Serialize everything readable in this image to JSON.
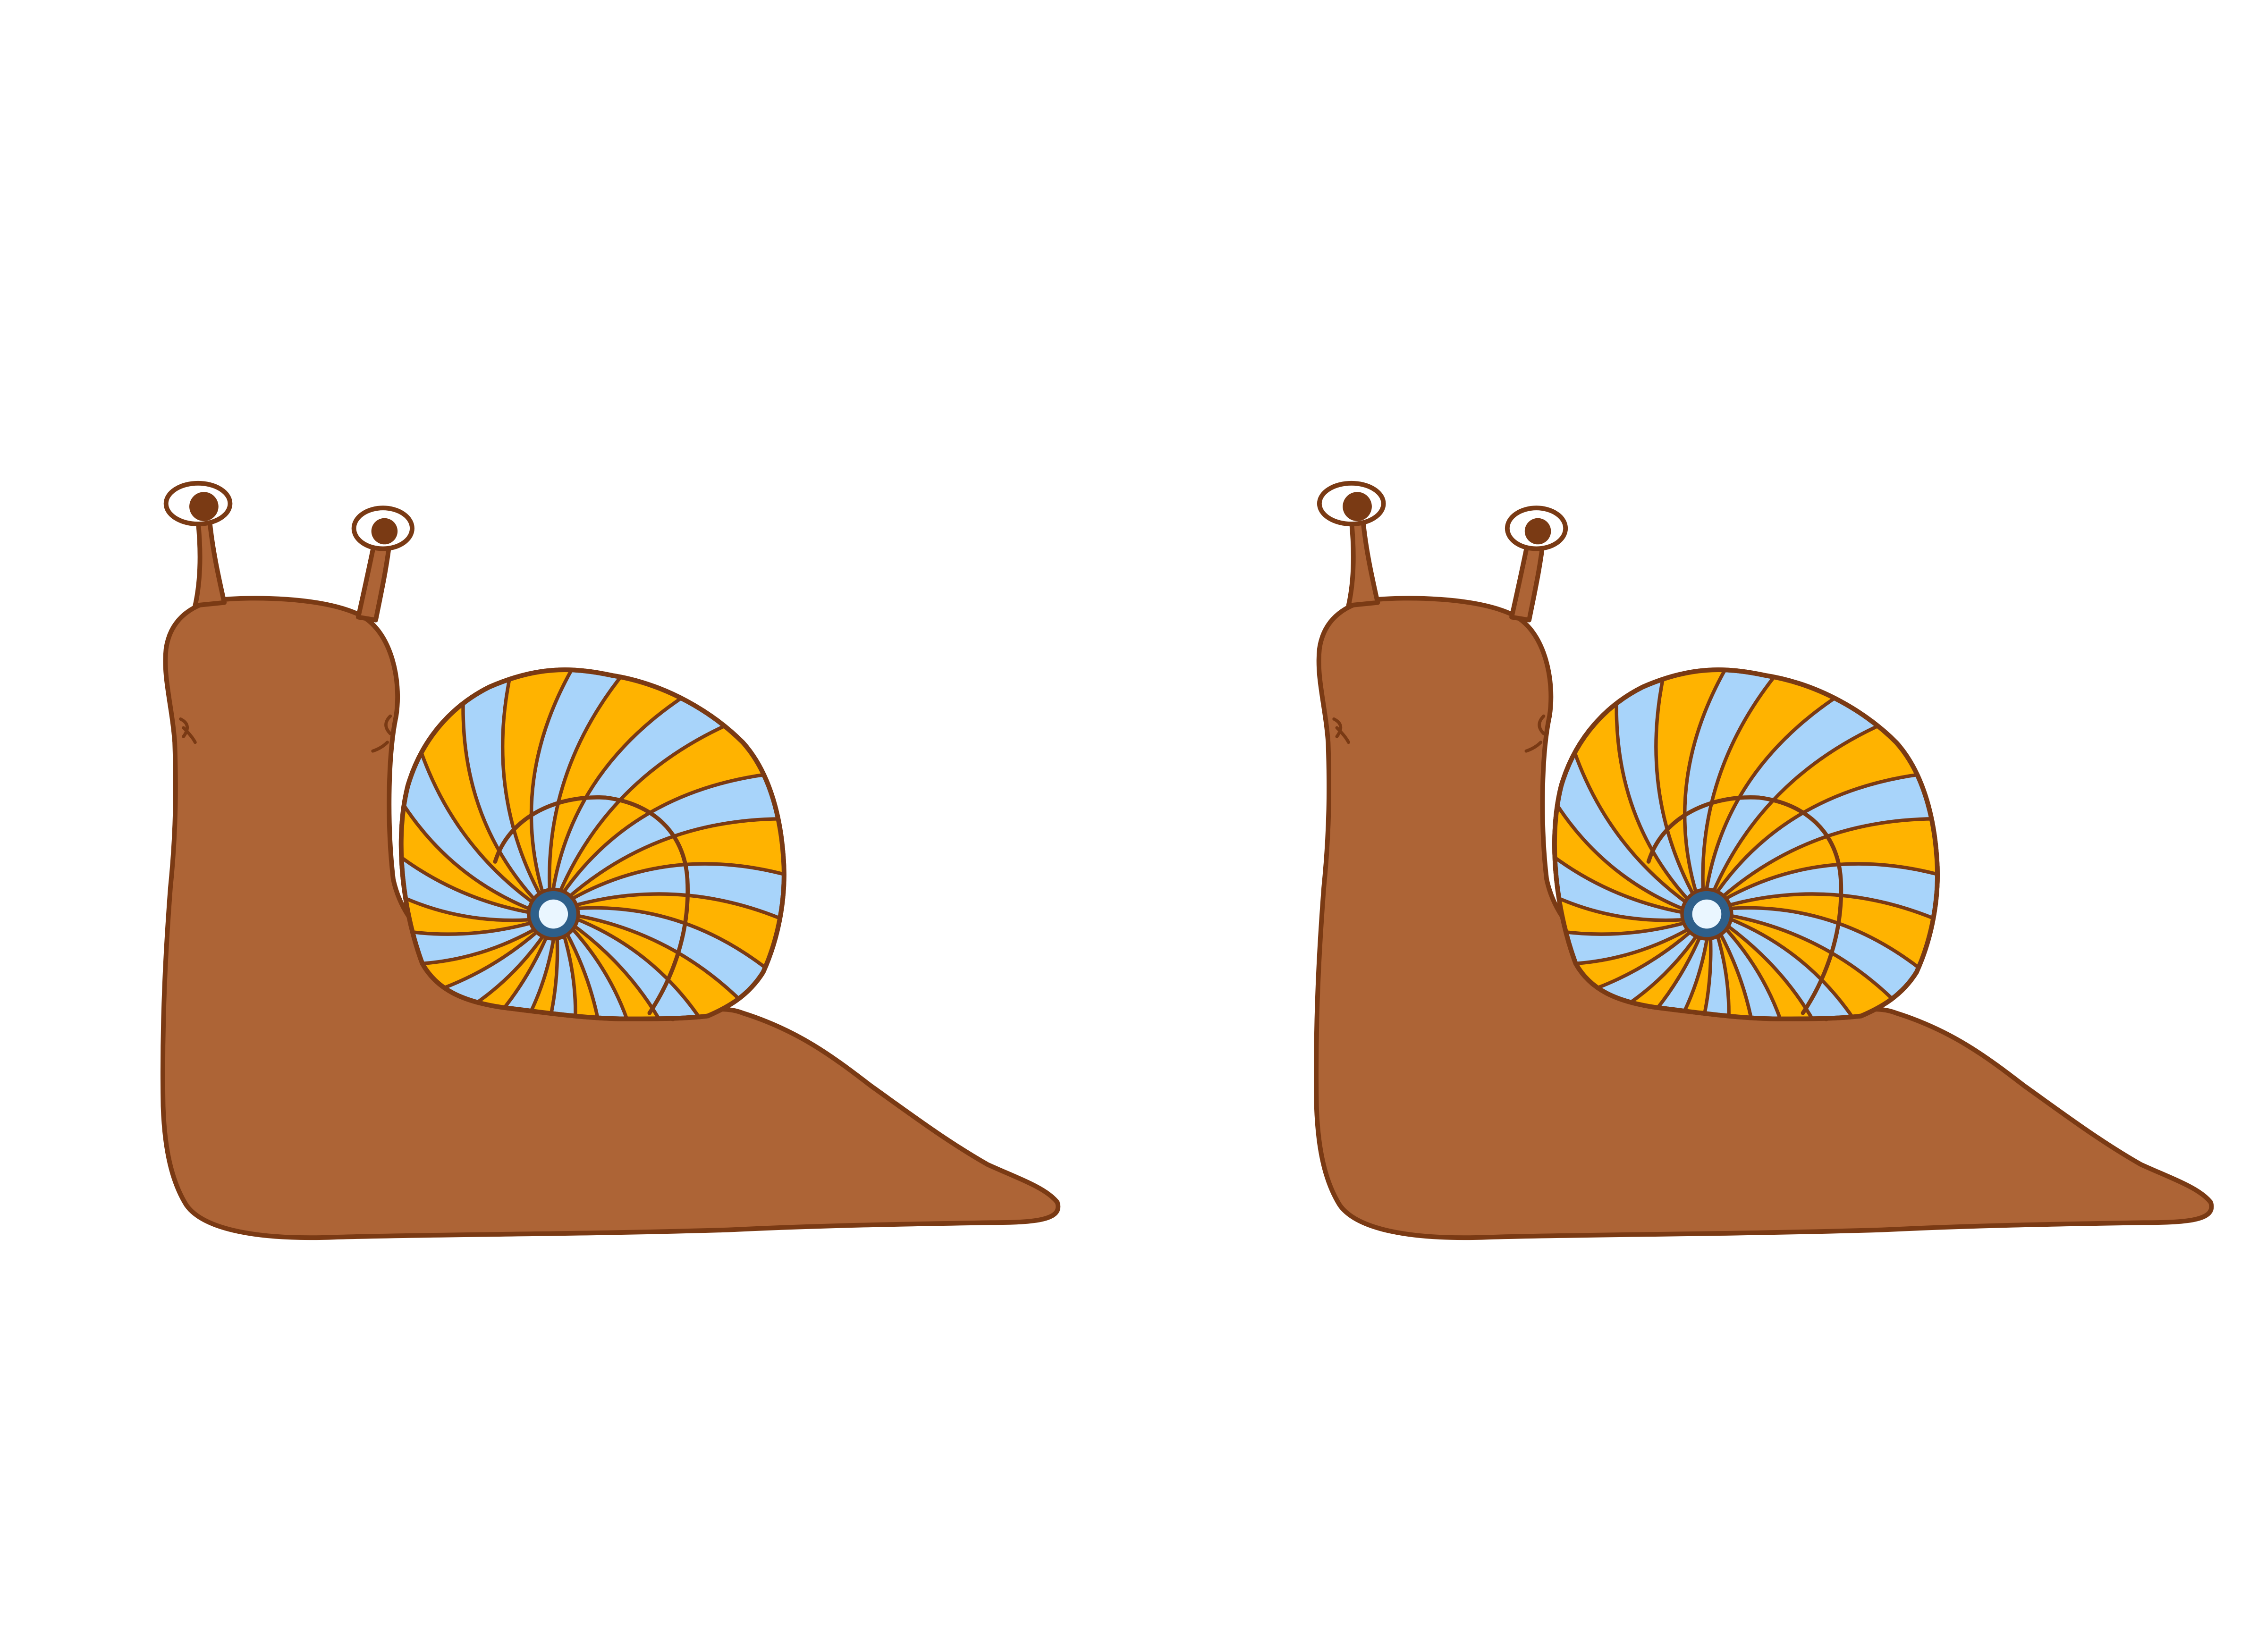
{
  "scene": {
    "background": "#ffffff",
    "snails": [
      {
        "name": "left-snail"
      },
      {
        "name": "right-snail"
      }
    ]
  },
  "palette": {
    "body": "#AD6436",
    "outline": "#7A3A14",
    "eye": "#7A3A14",
    "shell_blue": "#A8D4FA",
    "shell_orange": "#FFB300",
    "gem_outer": "#2E5F8A",
    "gem_inner": "#EAF6FF"
  },
  "icons": [
    "snail-body-icon",
    "snail-shell-icon",
    "eye-stalk-icon",
    "gem-icon"
  ]
}
